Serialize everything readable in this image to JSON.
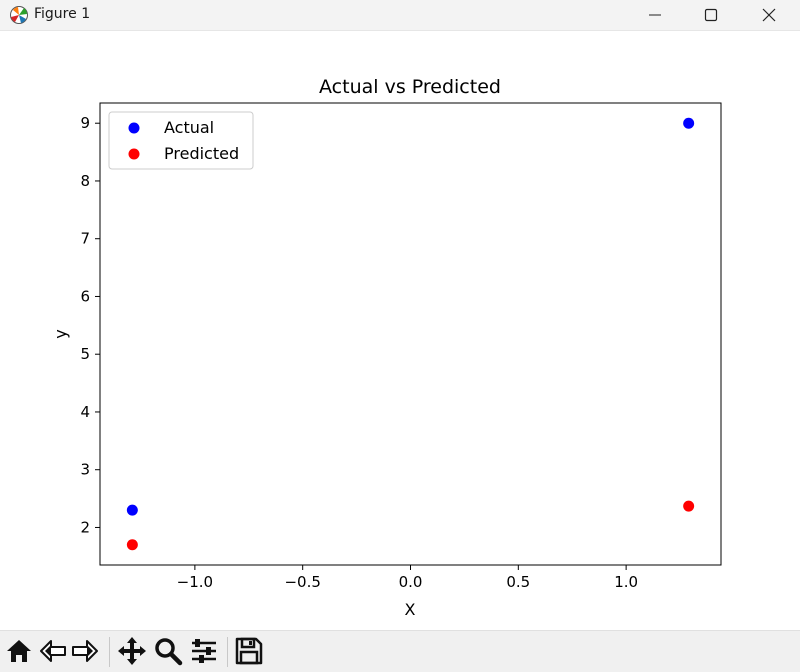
{
  "window": {
    "title": "Figure 1",
    "controls": [
      "minimize",
      "maximize",
      "close"
    ]
  },
  "toolbar": {
    "buttons": [
      "home-icon",
      "back-icon",
      "forward-icon",
      "pan-icon",
      "zoom-icon",
      "configure-subplots-icon",
      "save-icon"
    ]
  },
  "chart_data": {
    "type": "scatter",
    "title": "Actual vs Predicted",
    "xlabel": "X",
    "ylabel": "y",
    "xlim": [
      -1.44,
      1.44
    ],
    "ylim": [
      1.35,
      9.35
    ],
    "xticks": [
      -1.0,
      -0.5,
      0.0,
      0.5,
      1.0
    ],
    "xtick_labels": [
      "−1.0",
      "−0.5",
      "0.0",
      "0.5",
      "1.0"
    ],
    "yticks": [
      2,
      3,
      4,
      5,
      6,
      7,
      8,
      9
    ],
    "ytick_labels": [
      "2",
      "3",
      "4",
      "5",
      "6",
      "7",
      "8",
      "9"
    ],
    "grid": false,
    "legend_position": "top-left",
    "series": [
      {
        "name": "Actual",
        "color": "#0000ff",
        "x": [
          -1.29,
          1.29
        ],
        "y": [
          2.3,
          9.0
        ]
      },
      {
        "name": "Predicted",
        "color": "#ff0000",
        "x": [
          -1.29,
          1.29
        ],
        "y": [
          1.7,
          2.37
        ]
      }
    ]
  }
}
